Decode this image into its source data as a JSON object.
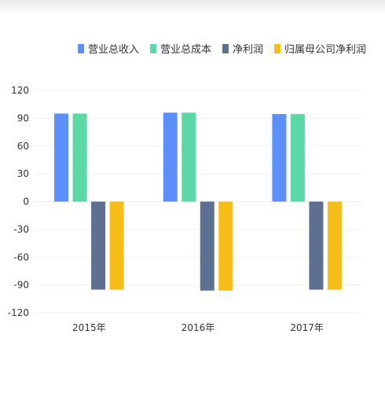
{
  "chart_data": {
    "type": "bar",
    "categories": [
      "2015年",
      "2016年",
      "2017年"
    ],
    "series": [
      {
        "name": "营业总收入",
        "color": "#5b8ff9",
        "values": [
          95,
          96,
          94.5
        ]
      },
      {
        "name": "营业总成本",
        "color": "#5ad8a6",
        "values": [
          95,
          96,
          94.5
        ]
      },
      {
        "name": "净利润",
        "color": "#5d7092",
        "values": [
          -95,
          -96,
          -95
        ]
      },
      {
        "name": "归属母公司净利润",
        "color": "#f6bd16",
        "values": [
          -95,
          -96,
          -95
        ]
      }
    ],
    "ylim": [
      -120,
      120
    ],
    "yticks": [
      120,
      90,
      60,
      30,
      0,
      -30,
      -60,
      -90,
      -120
    ],
    "grid": true,
    "legend": "top-right",
    "title": "",
    "xlabel": "",
    "ylabel": ""
  }
}
